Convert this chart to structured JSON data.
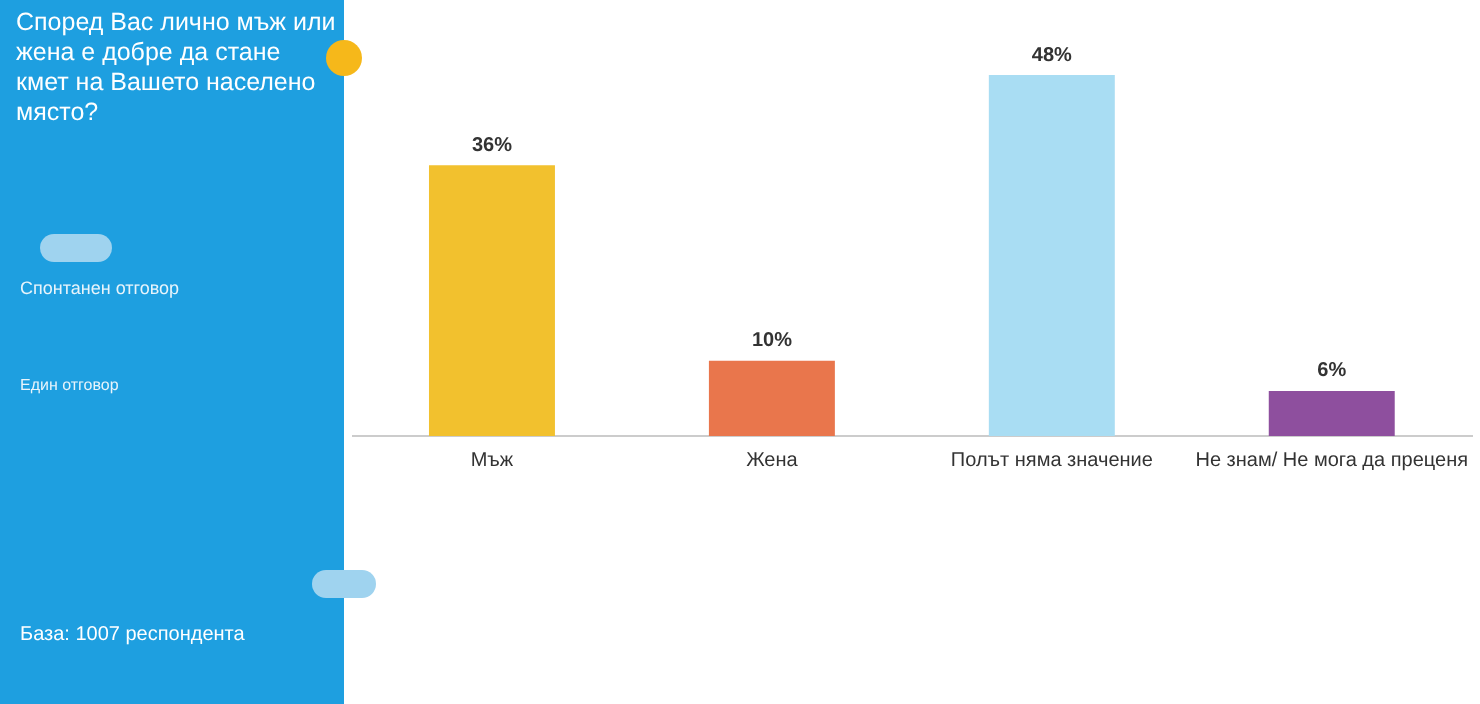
{
  "chart_data": {
    "type": "bar",
    "title": "Според Вас лично мъж или жена е добре да стане кмет на Вашето населено място?",
    "categories": [
      "Мъж",
      "Жена",
      "Полът няма значение",
      "Не знам/ Не мога да преценя"
    ],
    "values": [
      36,
      10,
      48,
      6
    ],
    "colors": [
      "#f2c12e",
      "#e9764c",
      "#a9ddf3",
      "#8e4f9e"
    ],
    "value_labels": [
      "36%",
      "10%",
      "48%",
      "6%"
    ],
    "annotations": [
      "Спонтанен отговор",
      "Един отговор",
      "База: 1007 респондента"
    ],
    "grid": false,
    "legend": false
  }
}
